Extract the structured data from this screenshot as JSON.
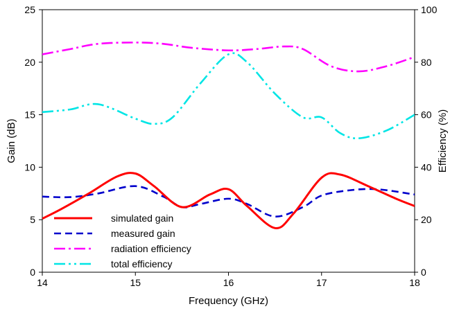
{
  "chart_data": {
    "type": "line",
    "xlabel": "Frequency (GHz)",
    "ylabel_left": "Gain (dB)",
    "ylabel_right": "Efficiency (%)",
    "xlim": [
      14,
      18
    ],
    "ylim_left": [
      0,
      25
    ],
    "ylim_right": [
      0,
      100
    ],
    "x_ticks": [
      "14",
      "15",
      "16",
      "17",
      "18"
    ],
    "y_left_ticks": [
      "0",
      "5",
      "10",
      "15",
      "20",
      "25"
    ],
    "y_right_ticks": [
      "0",
      "20",
      "40",
      "60",
      "80",
      "100"
    ],
    "grid": false,
    "legend_position": "lower-left",
    "series": [
      {
        "name": "simulated gain",
        "axis": "left",
        "color": "#ff0000",
        "style": "solid",
        "x": [
          14.0,
          14.2,
          14.5,
          14.8,
          15.0,
          15.2,
          15.5,
          15.8,
          16.0,
          16.2,
          16.5,
          16.7,
          17.0,
          17.2,
          17.5,
          17.8,
          18.0
        ],
        "y": [
          5.1,
          6.0,
          7.5,
          9.1,
          9.4,
          8.2,
          6.2,
          7.4,
          7.9,
          6.3,
          4.2,
          5.6,
          9.0,
          9.3,
          8.2,
          7.0,
          6.3
        ]
      },
      {
        "name": "measured gain",
        "axis": "left",
        "color": "#0000cc",
        "style": "dashed",
        "x": [
          14.0,
          14.3,
          14.6,
          15.0,
          15.3,
          15.5,
          15.7,
          16.0,
          16.2,
          16.5,
          16.8,
          17.0,
          17.3,
          17.6,
          18.0
        ],
        "y": [
          7.2,
          7.15,
          7.5,
          8.2,
          7.2,
          6.2,
          6.5,
          7.0,
          6.5,
          5.3,
          6.2,
          7.3,
          7.8,
          7.9,
          7.4
        ]
      },
      {
        "name": "radiation efficiency",
        "axis": "right",
        "color": "#ff00ff",
        "style": "dashdot",
        "x": [
          14.0,
          14.3,
          14.6,
          15.0,
          15.3,
          15.6,
          16.0,
          16.3,
          16.6,
          16.8,
          17.1,
          17.4,
          17.7,
          18.0
        ],
        "y": [
          83,
          85,
          87,
          87.5,
          87,
          85.5,
          84.5,
          85,
          86,
          85,
          78.5,
          76.5,
          78.5,
          82
        ]
      },
      {
        "name": "total efficiency",
        "axis": "right",
        "color": "#00e5e5",
        "style": "dashdotdot",
        "x": [
          14.0,
          14.3,
          14.6,
          15.0,
          15.2,
          15.4,
          15.7,
          16.0,
          16.2,
          16.5,
          16.8,
          17.0,
          17.2,
          17.4,
          17.7,
          18.0
        ],
        "y": [
          61,
          62,
          64,
          58.5,
          56.5,
          59,
          72,
          83,
          80,
          68,
          59,
          59,
          53,
          51,
          54,
          60
        ]
      }
    ]
  }
}
